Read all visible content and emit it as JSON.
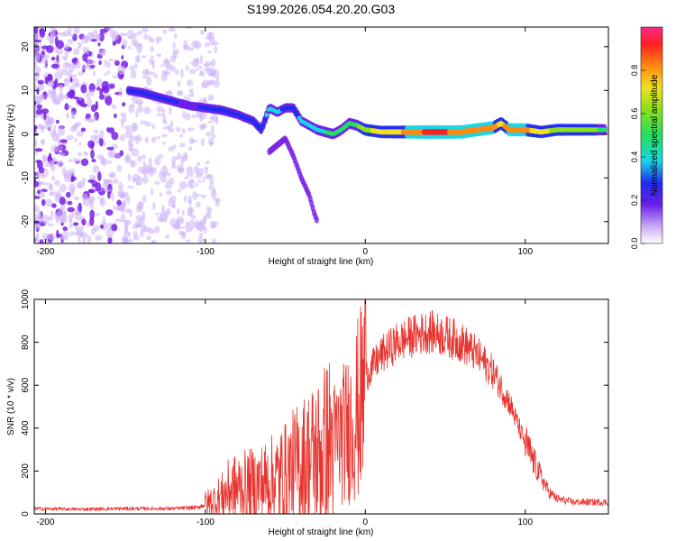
{
  "figure_title": "S199.2026.054.20.20.G03",
  "colors": {
    "snr_line": "#e8332e",
    "ridge_core": "#e8332e",
    "noise": "#7a22e6",
    "noise_light": "#cdb3f5",
    "frame": "#000000"
  },
  "chart_data": [
    {
      "type": "heatmap",
      "title": "S199.2026.054.20.20.G03",
      "xlabel": "Height of straight line (km)",
      "ylabel": "Frequency (Hz)",
      "xlim": [
        -207,
        152
      ],
      "ylim": [
        -25,
        24.5
      ],
      "xticks": [
        -200,
        -100,
        0,
        100
      ],
      "xtick_labels": [
        "-200",
        "-100",
        "0",
        "100"
      ],
      "yticks": [
        -20,
        -10,
        0,
        10,
        20
      ],
      "ytick_labels": [
        "-20",
        "-10",
        "0",
        "10",
        "20"
      ],
      "colorbar": {
        "label": "Normalized spectral amplitude",
        "range": [
          0,
          1
        ],
        "ticks": [
          0.0,
          0.2,
          0.4,
          0.6,
          0.8
        ],
        "tick_labels": [
          "0.0",
          "0.2",
          "0.4",
          "0.6",
          "0.8"
        ]
      },
      "ridge": {
        "description_x_km": [
          -148,
          -140,
          -130,
          -120,
          -110,
          -100,
          -90,
          -80,
          -70,
          -65,
          -60,
          -55,
          -50,
          -45,
          -40,
          -35,
          -30,
          -25,
          -20,
          -15,
          -10,
          -5,
          0,
          10,
          20,
          40,
          60,
          80,
          85,
          90,
          100,
          110,
          120,
          140,
          150
        ],
        "freq_hz": [
          10,
          9.5,
          8.5,
          7.5,
          6.5,
          6,
          5.5,
          4.5,
          3,
          1,
          6,
          5,
          6,
          6,
          3,
          2,
          1,
          0.5,
          0,
          1,
          2.5,
          2,
          1,
          0.5,
          0.5,
          0.5,
          0.5,
          1.5,
          2.5,
          1,
          1,
          0.5,
          1,
          1,
          1
        ],
        "amplitude": [
          0.3,
          0.35,
          0.3,
          0.3,
          0.25,
          0.3,
          0.35,
          0.3,
          0.3,
          0.35,
          0.4,
          0.4,
          0.35,
          0.35,
          0.4,
          0.4,
          0.45,
          0.5,
          0.5,
          0.5,
          0.55,
          0.6,
          0.7,
          0.75,
          0.8,
          0.95,
          0.9,
          0.85,
          0.8,
          0.85,
          0.85,
          0.75,
          0.7,
          0.65,
          0.6
        ]
      },
      "branch": {
        "x_km": [
          -60,
          -50,
          -45,
          -40,
          -35,
          -32,
          -30
        ],
        "freq_hz": [
          -4,
          -1,
          -5,
          -10,
          -14,
          -18,
          -20
        ]
      }
    },
    {
      "type": "line",
      "xlabel": "Height of straight line (km)",
      "ylabel": "SNR (10 * v/v)",
      "xlim": [
        -207,
        152
      ],
      "ylim": [
        0,
        1000
      ],
      "xticks": [
        -200,
        -100,
        0,
        100
      ],
      "xtick_labels": [
        "-200",
        "-100",
        "0",
        "100"
      ],
      "yticks": [
        0,
        200,
        400,
        600,
        800,
        1000
      ],
      "ytick_labels": [
        "0",
        "200",
        "400",
        "600",
        "800",
        "1000"
      ],
      "series": [
        {
          "name": "SNR",
          "envelope_x_km": [
            -207,
            -180,
            -150,
            -120,
            -105,
            -100,
            -95,
            -90,
            -85,
            -80,
            -70,
            -60,
            -50,
            -40,
            -30,
            -20,
            -10,
            -5,
            -1,
            0,
            1,
            5,
            10,
            20,
            30,
            40,
            50,
            60,
            70,
            80,
            90,
            100,
            110,
            115,
            120,
            130,
            140,
            152
          ],
          "envelope_snr": [
            25,
            22,
            25,
            25,
            30,
            45,
            60,
            80,
            110,
            120,
            130,
            150,
            180,
            230,
            270,
            330,
            400,
            480,
            550,
            600,
            650,
            690,
            740,
            800,
            830,
            850,
            830,
            800,
            740,
            660,
            520,
            330,
            170,
            100,
            70,
            55,
            55,
            55
          ]
        }
      ]
    }
  ]
}
